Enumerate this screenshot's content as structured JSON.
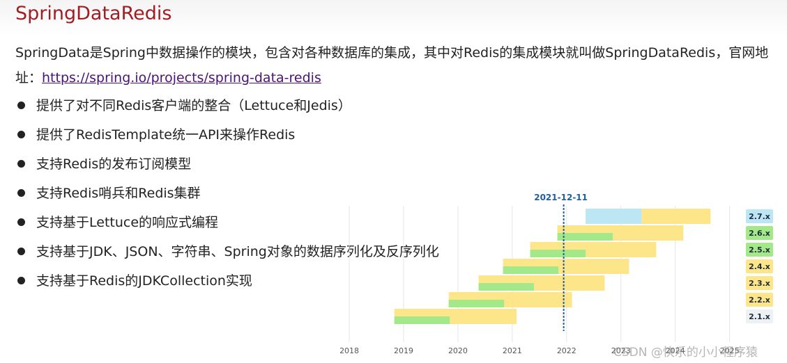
{
  "slide": {
    "title": "SpringDataRedis",
    "intro_text": "SpringData是Spring中数据操作的模块，包含对各种数据库的集成，其中对Redis的集成模块就叫做SpringDataRedis，官网地址：",
    "link_text": "https://spring.io/projects/spring-data-redis",
    "bullets": [
      "提供了对不同Redis客户端的整合（Lettuce和Jedis）",
      "提供了RedisTemplate统一API来操作Redis",
      "支持Redis的发布订阅模型",
      "支持Redis哨兵和Redis集群",
      "支持基于Lettuce的响应式编程",
      "支持基于JDK、JSON、字符串、Spring对象的数据序列化及反序列化",
      "支持基于Redis的JDKCollection实现"
    ]
  },
  "watermark": "CSDN @快乐的小小程序猿",
  "colors": {
    "title": "#a11d23",
    "link": "#4b1273",
    "support_bar": "#fde68a",
    "highlight_bar": "#a3e889",
    "future_bar": "#bde6f5",
    "today_line": "#1f5fa0"
  },
  "chart_data": {
    "type": "gantt",
    "today_marker": "2021-12-11",
    "x_ticks": [
      "2018",
      "2019",
      "2020",
      "2021",
      "2022",
      "2023",
      "2024",
      "2025"
    ],
    "x_range": [
      2017.55,
      2025.3
    ],
    "versions": [
      {
        "name": "2.7.x",
        "badge_color": "#bde6f5",
        "bars": [
          {
            "start": 2022.35,
            "end": 2023.38,
            "kind": "future"
          },
          {
            "start": 2023.38,
            "end": 2024.65,
            "kind": "support"
          }
        ]
      },
      {
        "name": "2.6.x",
        "badge_color": "#a3e889",
        "bars": [
          {
            "start": 2021.83,
            "end": 2024.15,
            "kind": "support"
          },
          {
            "start": 2021.83,
            "end": 2022.85,
            "kind": "highlight"
          }
        ]
      },
      {
        "name": "2.5.x",
        "badge_color": "#a3e889",
        "bars": [
          {
            "start": 2021.33,
            "end": 2023.65,
            "kind": "support"
          },
          {
            "start": 2021.33,
            "end": 2022.35,
            "kind": "highlight"
          }
        ]
      },
      {
        "name": "2.4.x",
        "badge_color": "#fde68a",
        "bars": [
          {
            "start": 2020.83,
            "end": 2023.15,
            "kind": "support"
          },
          {
            "start": 2020.83,
            "end": 2021.85,
            "kind": "highlight"
          }
        ]
      },
      {
        "name": "2.3.x",
        "badge_color": "#fde68a",
        "bars": [
          {
            "start": 2020.38,
            "end": 2022.7,
            "kind": "support"
          },
          {
            "start": 2020.38,
            "end": 2021.4,
            "kind": "highlight"
          }
        ]
      },
      {
        "name": "2.2.x",
        "badge_color": "#fde68a",
        "bars": [
          {
            "start": 2019.83,
            "end": 2022.1,
            "kind": "support"
          },
          {
            "start": 2019.83,
            "end": 2020.85,
            "kind": "highlight"
          }
        ]
      },
      {
        "name": "2.1.x",
        "badge_color": "#eef1f4",
        "bars": [
          {
            "start": 2018.83,
            "end": 2021.08,
            "kind": "support"
          },
          {
            "start": 2018.83,
            "end": 2019.85,
            "kind": "highlight"
          }
        ]
      }
    ]
  }
}
